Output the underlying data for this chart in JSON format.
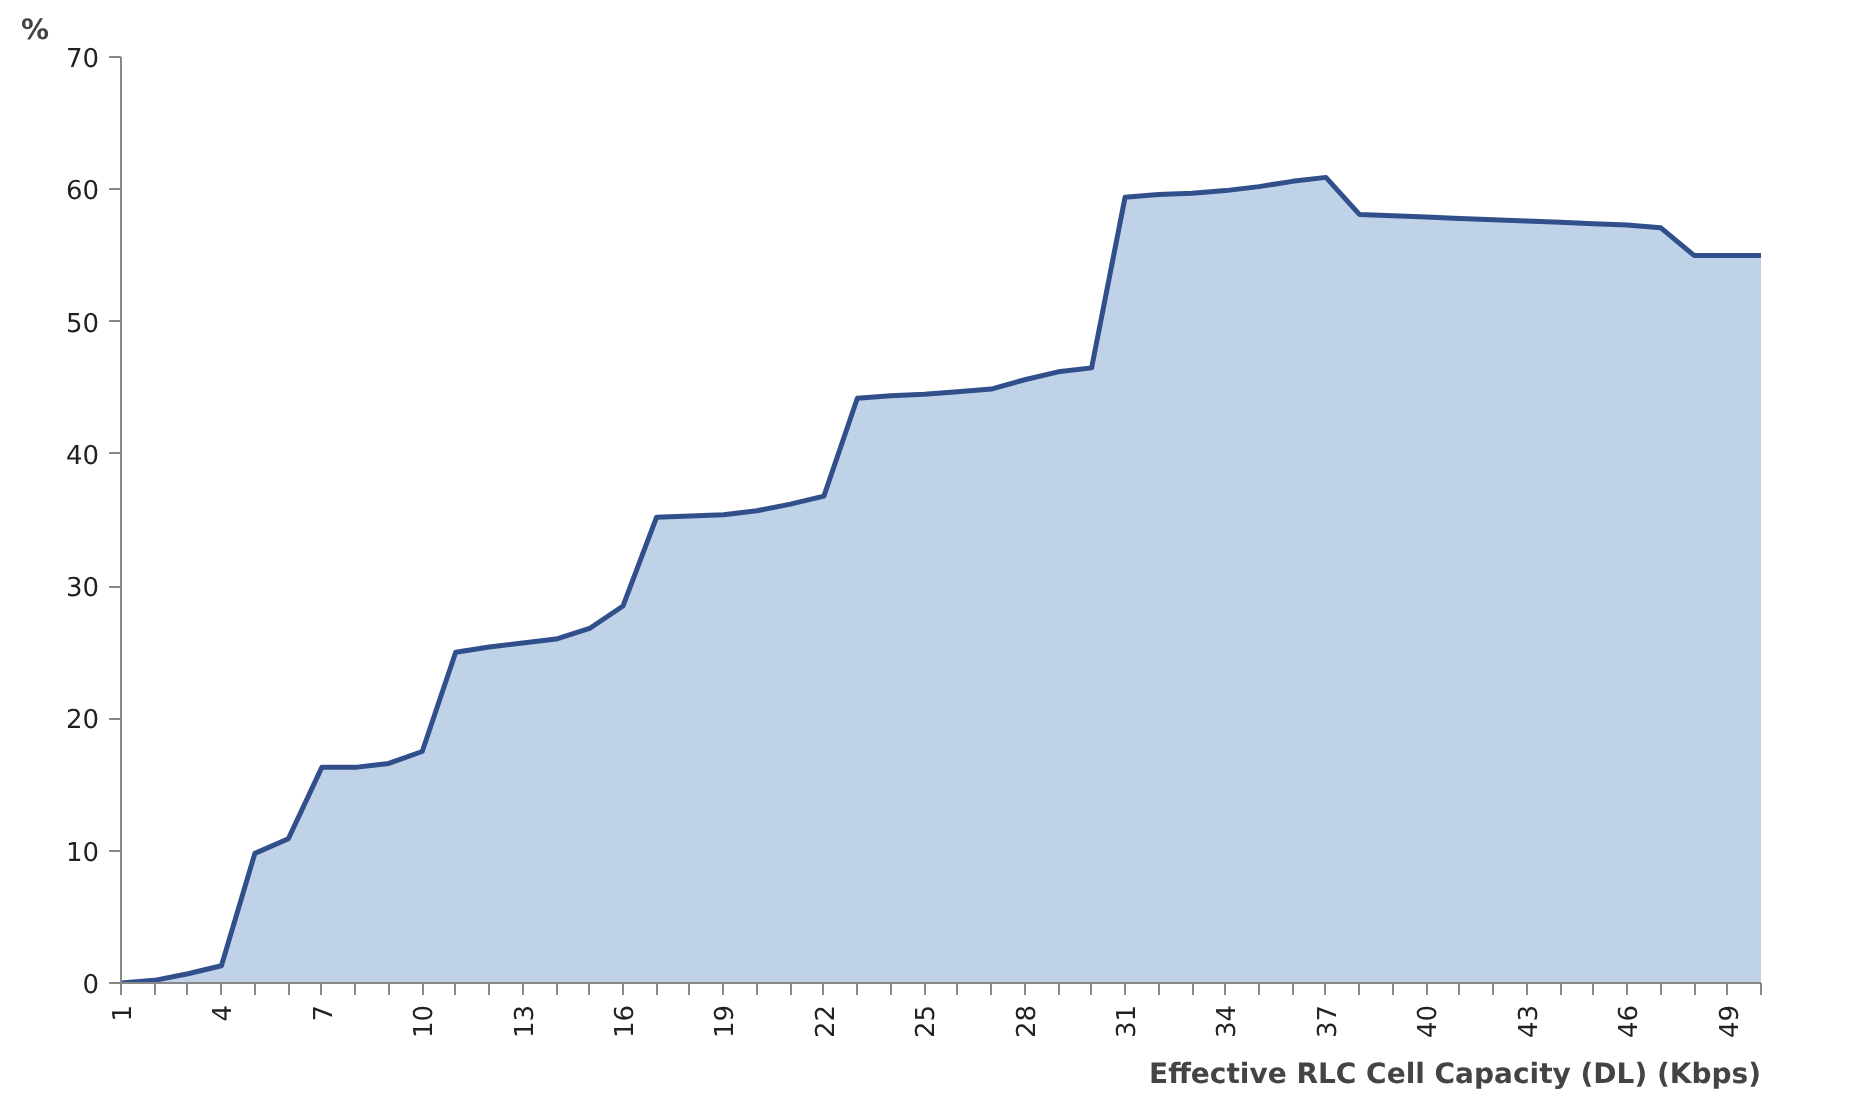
{
  "chart_data": {
    "type": "area",
    "xlabel": "Effective RLC Cell Capacity (DL) (Kbps)",
    "ylabel": "%",
    "categories": [
      "1",
      null,
      null,
      "4",
      null,
      null,
      "7",
      null,
      null,
      "10",
      null,
      null,
      "13",
      null,
      null,
      "16",
      null,
      null,
      "19",
      null,
      null,
      "22",
      null,
      null,
      "25",
      null,
      null,
      "28",
      null,
      null,
      "31",
      null,
      null,
      "34",
      null,
      null,
      "37",
      null,
      null,
      "40",
      null,
      null,
      "43",
      null,
      null,
      "46",
      null,
      null,
      "49",
      null
    ],
    "series": [
      {
        "color": "#c0d2e8",
        "values": [
          0,
          0.2,
          0.7,
          1.3,
          9.8,
          10.9,
          16.3,
          16.3,
          16.6,
          17.5,
          25.0,
          25.4,
          25.7,
          26.0,
          26.8,
          28.5,
          35.2,
          35.3,
          35.4,
          35.7,
          36.2,
          36.8,
          44.2,
          44.4,
          44.5,
          44.7,
          44.9,
          45.6,
          46.2,
          46.5,
          59.4,
          59.6,
          59.7,
          59.9,
          60.2,
          60.6,
          60.9,
          58.1,
          58.0,
          57.9,
          57.8,
          57.7,
          57.6,
          57.5,
          57.4,
          57.3,
          57.1,
          55.0,
          55.0,
          55.0
        ]
      }
    ],
    "ylim": [
      0,
      70
    ],
    "yticks": [
      0,
      10,
      20,
      30,
      40,
      50,
      60,
      70
    ],
    "grid": false
  }
}
